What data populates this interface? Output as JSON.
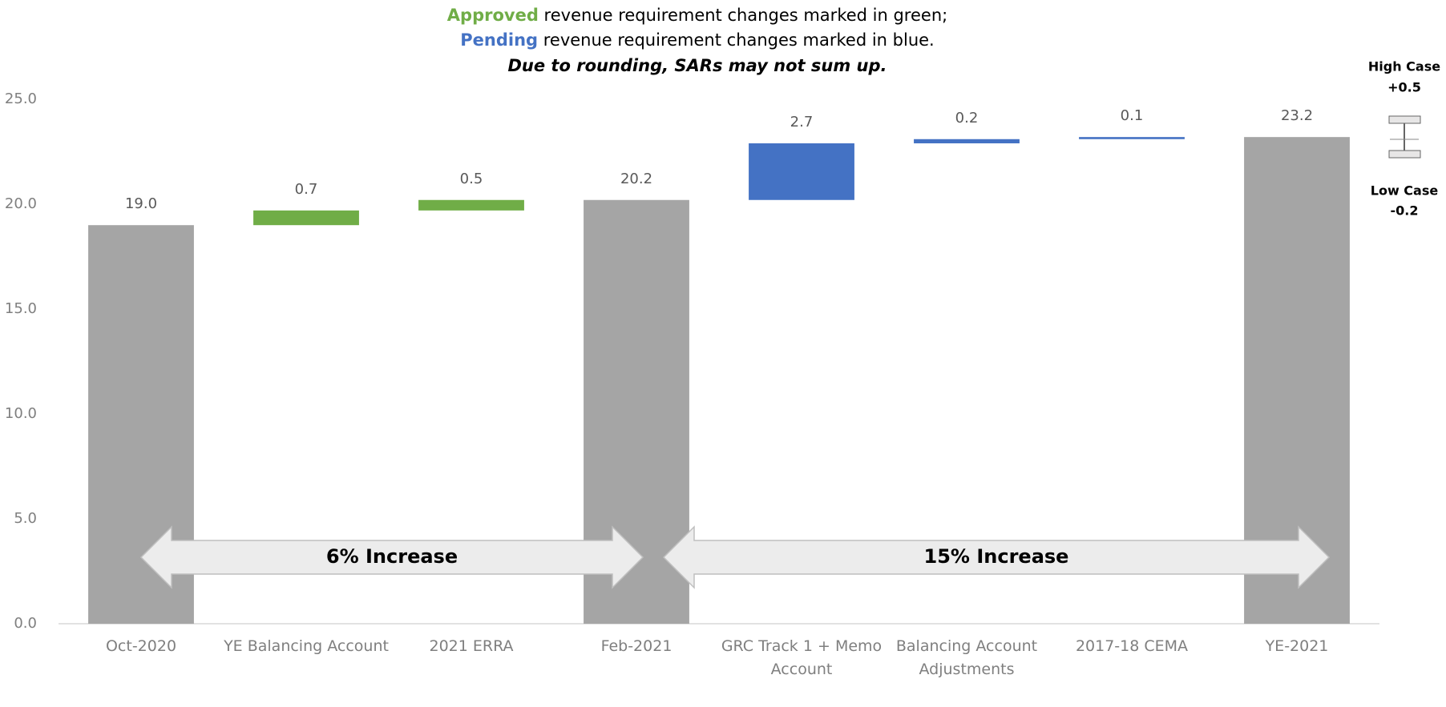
{
  "chart_data": {
    "type": "waterfall",
    "notes": [
      {
        "highlight": "Approved",
        "text": "revenue requirement changes marked in green;"
      },
      {
        "highlight": "Pending",
        "text": "revenue requirement changes marked in blue."
      }
    ],
    "note_colors": [
      "#70ad47",
      "#4472c4"
    ],
    "subtitle": "Due to rounding, SARs may not sum up.",
    "categories": [
      "Oct-2020",
      "YE Balancing Account",
      "2021 ERRA",
      "Feb-2021",
      "GRC Track 1 + Memo Account",
      "Balancing Account Adjustments",
      "2017-18 CEMA",
      "YE-2021"
    ],
    "values": [
      19.0,
      0.7,
      0.5,
      20.2,
      2.7,
      0.2,
      0.1,
      23.2
    ],
    "value_labels": [
      "19.0",
      "0.7",
      "0.5",
      "20.2",
      "2.7",
      "0.2",
      "0.1",
      "23.2"
    ],
    "measure": [
      "total",
      "relative",
      "relative",
      "total",
      "relative",
      "relative",
      "relative",
      "total"
    ],
    "colors": [
      "#a5a5a5",
      "#70ad47",
      "#70ad47",
      "#a5a5a5",
      "#4472c4",
      "#4472c4",
      "#4472c4",
      "#a5a5a5"
    ],
    "ylim": [
      0,
      25
    ],
    "yticks": [
      {
        "value": 0,
        "label": "0.0"
      },
      {
        "value": 5,
        "label": "5.0"
      },
      {
        "value": 10,
        "label": "10.0"
      },
      {
        "value": 15,
        "label": "15.0"
      },
      {
        "value": 20,
        "label": "20.0"
      },
      {
        "value": 25,
        "label": "25.0"
      }
    ],
    "grid": false,
    "annotations": [
      "6% Increase",
      "15% Increase"
    ],
    "range": {
      "high_label": "High Case",
      "high": "+0.5",
      "low_label": "Low Case",
      "low": "-0.2"
    }
  }
}
